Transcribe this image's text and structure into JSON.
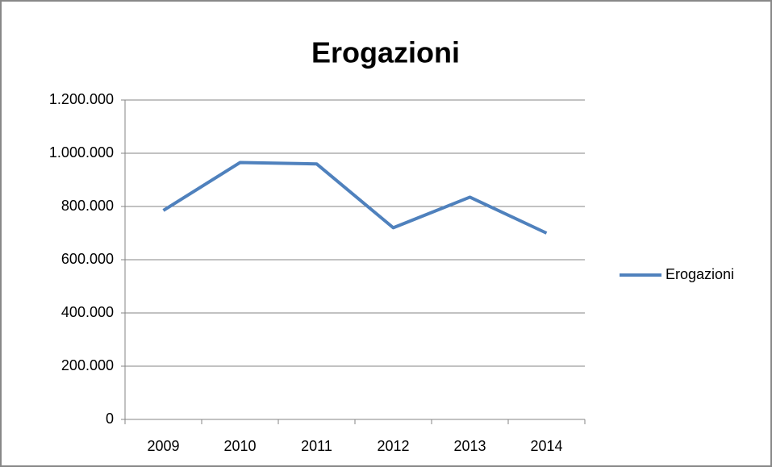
{
  "chart_data": {
    "type": "line",
    "title": "Erogazioni",
    "categories": [
      "2009",
      "2010",
      "2011",
      "2012",
      "2013",
      "2014"
    ],
    "series": [
      {
        "name": "Erogazioni",
        "color": "#4f81bd",
        "values": [
          785000,
          965000,
          960000,
          720000,
          835000,
          700000
        ]
      }
    ],
    "ylim": [
      0,
      1200000
    ],
    "yticks": [
      0,
      {
        "value": 200000,
        "label": "200.000"
      },
      {
        "value": 400000,
        "label": "400.000"
      },
      {
        "value": 600000,
        "label": "600.000"
      },
      {
        "value": 800000,
        "label": "800.000"
      },
      {
        "value": 1000000,
        "label": "1.000.000"
      },
      {
        "value": 1200000,
        "label": "1.200.000"
      }
    ],
    "grid": true,
    "legend": "right"
  }
}
